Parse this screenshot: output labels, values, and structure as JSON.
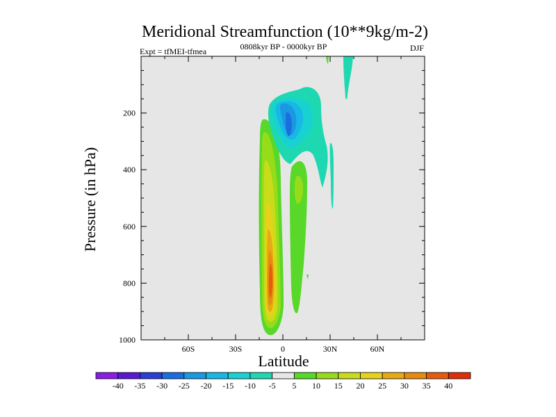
{
  "chart_data": {
    "type": "contour",
    "title": "Meridional Streamfunction (10**9kg/m-2)",
    "left_label": "Expt = tfMEI-tfmea",
    "center_label": "0808kyr BP - 0000kyr BP",
    "right_label": "DJF",
    "xlabel": "Latitude",
    "ylabel": "Pressure (in hPa)",
    "xlim": [
      -90,
      90
    ],
    "ylim": [
      1000,
      0
    ],
    "x_ticks": [
      {
        "value": -60,
        "label": "60S"
      },
      {
        "value": -30,
        "label": "30S"
      },
      {
        "value": 0,
        "label": "0"
      },
      {
        "value": 30,
        "label": "30N"
      },
      {
        "value": 60,
        "label": "60N"
      }
    ],
    "y_ticks": [
      {
        "value": 200,
        "label": "200"
      },
      {
        "value": 400,
        "label": "400"
      },
      {
        "value": 600,
        "label": "600"
      },
      {
        "value": 800,
        "label": "800"
      },
      {
        "value": 1000,
        "label": "1000"
      }
    ],
    "background_color": "#e6e6e6",
    "colorbar": {
      "levels": [
        -40,
        -35,
        -30,
        -25,
        -20,
        -15,
        -10,
        -5,
        5,
        10,
        15,
        20,
        25,
        30,
        35,
        40
      ],
      "labels": [
        "-40",
        "-35",
        "-30",
        "-25",
        "-20",
        "-15",
        "-10",
        "-5",
        "5",
        "10",
        "15",
        "20",
        "25",
        "30",
        "35",
        "40"
      ],
      "colors": [
        "#8a1ce6",
        "#5a18d6",
        "#2a3ed6",
        "#1a6ee0",
        "#1a98e0",
        "#18b8e6",
        "#18d2d2",
        "#1ed8b2",
        "#e6e6e6",
        "#58d828",
        "#96dc1a",
        "#c8dc1a",
        "#e6d21a",
        "#e6aa14",
        "#e68a10",
        "#e65c0e",
        "#e02e0a"
      ]
    },
    "features": [
      {
        "name": "southern-hemisphere-cell",
        "sign": "positive",
        "center_lat": -5,
        "center_p": 770,
        "max": 35,
        "lat_range": [
          -12,
          0
        ],
        "p_range": [
          230,
          980
        ]
      },
      {
        "name": "northern-positive-cell",
        "sign": "positive",
        "center_lat": 10,
        "center_p": 460,
        "max": 10,
        "lat_range": [
          5,
          20
        ],
        "p_range": [
          350,
          860
        ]
      },
      {
        "name": "upper-negative-cell",
        "sign": "negative",
        "center_lat": 3,
        "center_p": 200,
        "max": -25,
        "lat_range": [
          -6,
          26
        ],
        "p_range": [
          120,
          320
        ]
      },
      {
        "name": "northern-negative-tail",
        "sign": "negative",
        "center_lat": 24,
        "center_p": 420,
        "max": -5,
        "lat_range": [
          19,
          32
        ],
        "p_range": [
          180,
          560
        ]
      },
      {
        "name": "upper-negative-strip",
        "sign": "negative",
        "center_lat": 40,
        "center_p": 100,
        "max": -5,
        "lat_range": [
          39,
          45
        ],
        "p_range": [
          0,
          150
        ]
      }
    ]
  }
}
